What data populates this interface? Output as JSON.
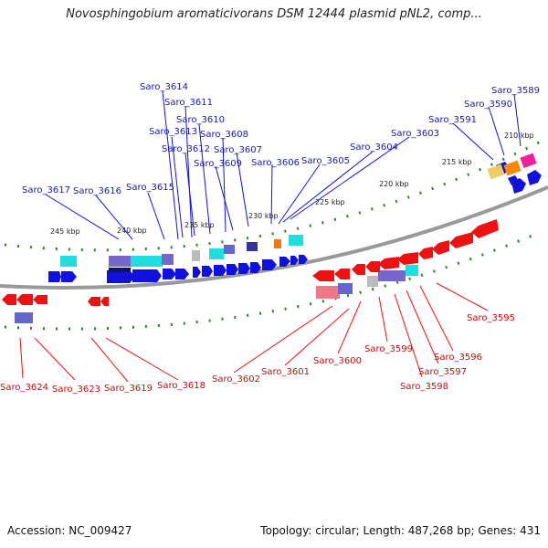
{
  "title": "Novosphingobium aromaticivorans DSM 12444 plasmid pNL2, comp...",
  "accession": "Accession: NC_009427",
  "summary": "Topology: circular; Length: 487,268 bp; Genes: 431",
  "colors": {
    "forward": "#1111dd",
    "reverse": "#ee1111",
    "forward_label": "#1a1aa6",
    "reverse_label": "#bb1111",
    "ticks": "#228822",
    "backbone": "#888888"
  },
  "kbp_labels": [
    "245 kbp",
    "240 kbp",
    "235 kbp",
    "230 kbp",
    "225 kbp",
    "220 kbp",
    "215 kbp",
    "210 kbp"
  ],
  "forward_genes": [
    "Saro_3617",
    "Saro_3616",
    "Saro_3615",
    "Saro_3614",
    "Saro_3613",
    "Saro_3612",
    "Saro_3611",
    "Saro_3610",
    "Saro_3609",
    "Saro_3608",
    "Saro_3607",
    "Saro_3606",
    "Saro_3605",
    "Saro_3604",
    "Saro_3603",
    "Saro_3591",
    "Saro_3590",
    "Saro_3589"
  ],
  "reverse_genes": [
    "Saro_3624",
    "Saro_3623",
    "Saro_3619",
    "Saro_3618",
    "Saro_3602",
    "Saro_3601",
    "Saro_3600",
    "Saro_3599",
    "Saro_3598",
    "Saro_3597",
    "Saro_3596",
    "Saro_3595"
  ]
}
